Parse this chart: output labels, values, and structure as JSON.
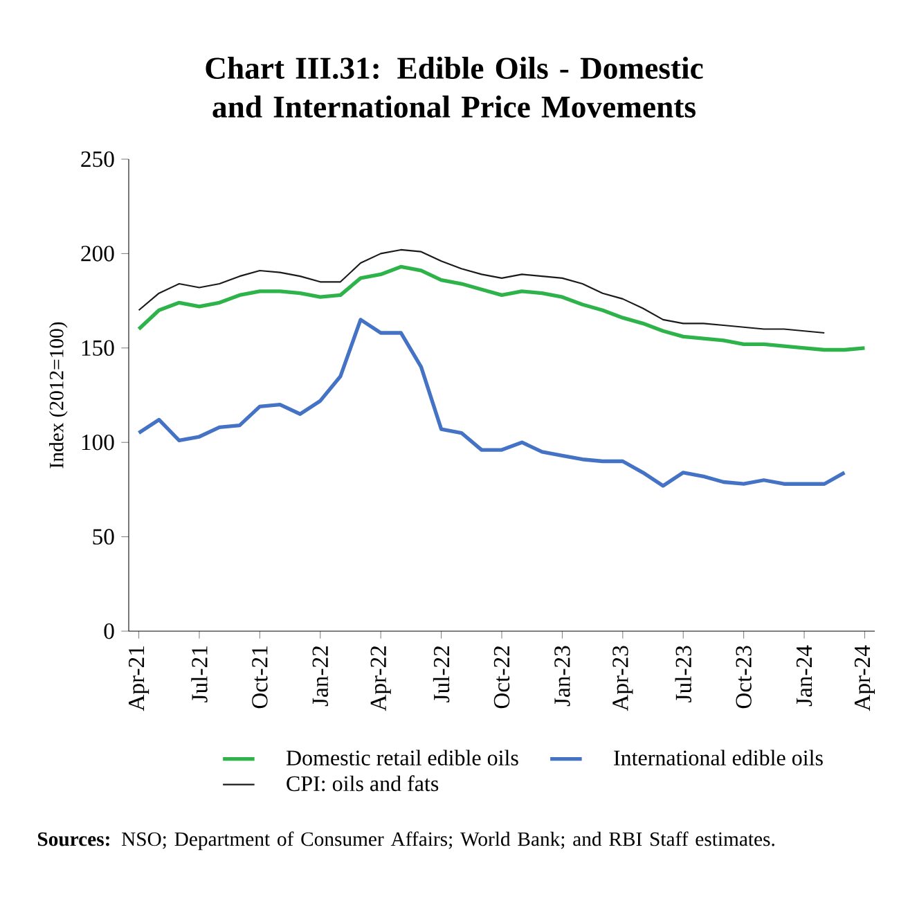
{
  "chart_data": {
    "type": "line",
    "title": "Chart III.31: Edible Oils - Domestic and International Price Movements",
    "ylabel": "Index (2012=100)",
    "categories": [
      "Apr-21",
      null,
      null,
      "Jul-21",
      null,
      null,
      "Oct-21",
      null,
      null,
      "Jan-22",
      null,
      null,
      "Apr-22",
      null,
      null,
      "Jul-22",
      null,
      null,
      "Oct-22",
      null,
      null,
      "Jan-23",
      null,
      null,
      "Apr-23",
      null,
      null,
      "Jul-23",
      null,
      null,
      "Oct-23",
      null,
      null,
      "Jan-24",
      null,
      null,
      "Apr-24"
    ],
    "series": [
      {
        "name": "Domestic retail edible oils",
        "color": "#2db34a",
        "values": [
          160,
          170,
          174,
          172,
          174,
          178,
          180,
          180,
          179,
          177,
          178,
          187,
          189,
          193,
          191,
          186,
          184,
          181,
          178,
          180,
          179,
          177,
          173,
          170,
          166,
          163,
          159,
          156,
          155,
          154,
          152,
          152,
          151,
          150,
          149,
          149,
          150
        ]
      },
      {
        "name": "International edible oils",
        "color": "#4472c4",
        "values": [
          105,
          112,
          101,
          103,
          108,
          109,
          119,
          120,
          115,
          122,
          135,
          165,
          158,
          158,
          140,
          107,
          105,
          96,
          96,
          100,
          95,
          93,
          91,
          90,
          90,
          84,
          77,
          84,
          82,
          79,
          78,
          80,
          78,
          78,
          78,
          84,
          null
        ]
      },
      {
        "name": "CPI: oils and fats",
        "color": "#1a1a1a",
        "values": [
          170,
          179,
          184,
          182,
          184,
          188,
          191,
          190,
          188,
          185,
          185,
          195,
          200,
          202,
          201,
          196,
          192,
          189,
          187,
          189,
          188,
          187,
          184,
          179,
          176,
          171,
          165,
          163,
          163,
          162,
          161,
          160,
          160,
          159,
          158,
          null,
          null
        ]
      }
    ],
    "ylim": [
      0,
      250
    ],
    "yticks": [
      0,
      50,
      100,
      150,
      200,
      250
    ],
    "grid": false,
    "legend": "bottom",
    "line_style": "solid",
    "annotations": [
      "**Sources:** NSO; Department of Consumer Affairs; World Bank; and RBI Staff estimates."
    ]
  }
}
